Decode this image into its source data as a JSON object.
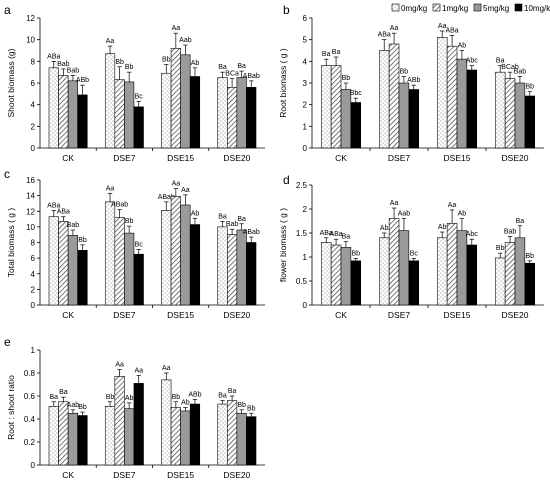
{
  "legend": {
    "entries": [
      {
        "label": "0mg/kg",
        "pattern": "dots"
      },
      {
        "label": "1mg/kg",
        "pattern": "hatch"
      },
      {
        "label": "5mg/kg",
        "pattern": "gray"
      },
      {
        "label": "10mg/kg",
        "pattern": "black"
      }
    ]
  },
  "patterns": {
    "gray_fill": "#9a9a9a",
    "black_fill": "#000000",
    "white_fill": "#ffffff"
  },
  "chart_data": [
    {
      "panel": "a",
      "type": "bar",
      "title": "",
      "xlabel": "",
      "ylabel": "Shoot biomass (g)",
      "ylim": [
        0,
        12
      ],
      "yticks": [
        0,
        2,
        4,
        6,
        8,
        10,
        12
      ],
      "categories": [
        "CK",
        "DSE7",
        "DSE15",
        "DSE20"
      ],
      "series": [
        {
          "name": "0mg/kg",
          "values": [
            7.4,
            8.7,
            6.9,
            6.5
          ],
          "errors": [
            0.6,
            0.7,
            0.8,
            0.5
          ]
        },
        {
          "name": "1mg/kg",
          "values": [
            6.7,
            6.3,
            9.2,
            5.6
          ],
          "errors": [
            0.6,
            1.2,
            1.4,
            0.8
          ]
        },
        {
          "name": "5mg/kg",
          "values": [
            6.2,
            6.1,
            8.6,
            6.5
          ],
          "errors": [
            0.5,
            0.9,
            0.9,
            0.6
          ]
        },
        {
          "name": "10mg/kg",
          "values": [
            4.9,
            3.8,
            6.6,
            5.6
          ],
          "errors": [
            0.9,
            0.5,
            0.8,
            0.6
          ]
        }
      ],
      "labels": [
        [
          "ABa",
          "Bab",
          "Bab",
          "ABb"
        ],
        [
          "Aa",
          "Bb",
          "Bb",
          "Bc"
        ],
        [
          "Bb",
          "Aa",
          "Aab",
          "Ab"
        ],
        [
          "Ba",
          "BCa",
          "Ba",
          "ABab"
        ]
      ]
    },
    {
      "panel": "b",
      "type": "bar",
      "title": "",
      "xlabel": "",
      "ylabel": "Root biomass ( g )",
      "ylim": [
        0,
        6
      ],
      "yticks": [
        0,
        1,
        2,
        3,
        4,
        5,
        6
      ],
      "categories": [
        "CK",
        "DSE7",
        "DSE15",
        "DSE20"
      ],
      "series": [
        {
          "name": "0mg/kg",
          "values": [
            3.8,
            4.5,
            5.1,
            3.5
          ],
          "errors": [
            0.3,
            0.5,
            0.3,
            0.3
          ]
        },
        {
          "name": "1mg/kg",
          "values": [
            3.8,
            4.8,
            4.7,
            3.2
          ],
          "errors": [
            0.4,
            0.5,
            0.5,
            0.3
          ]
        },
        {
          "name": "5mg/kg",
          "values": [
            2.7,
            3.0,
            4.1,
            3.0
          ],
          "errors": [
            0.3,
            0.3,
            0.4,
            0.3
          ]
        },
        {
          "name": "10mg/kg",
          "values": [
            2.1,
            2.7,
            3.6,
            2.4
          ],
          "errors": [
            0.2,
            0.2,
            0.2,
            0.2
          ]
        }
      ],
      "labels": [
        [
          "Ba",
          "Ba",
          "Bb",
          "Bbc"
        ],
        [
          "ABa",
          "Aa",
          "Bb",
          "ABb"
        ],
        [
          "Aa",
          "ABa",
          "Ab",
          "Abc"
        ],
        [
          "Ba",
          "BCab",
          "Bab",
          "Bb"
        ]
      ]
    },
    {
      "panel": "c",
      "type": "bar",
      "title": "",
      "xlabel": "",
      "ylabel": "Total biomass ( g )",
      "ylim": [
        0,
        16
      ],
      "yticks": [
        0,
        2,
        4,
        6,
        8,
        10,
        12,
        14,
        16
      ],
      "categories": [
        "CK",
        "DSE7",
        "DSE15",
        "DSE20"
      ],
      "series": [
        {
          "name": "0mg/kg",
          "values": [
            11.3,
            13.2,
            12.1,
            10.0
          ],
          "errors": [
            0.8,
            1.1,
            1.1,
            0.7
          ]
        },
        {
          "name": "1mg/kg",
          "values": [
            10.7,
            11.2,
            13.9,
            9.0
          ],
          "errors": [
            0.6,
            1.0,
            1.0,
            0.7
          ]
        },
        {
          "name": "5mg/kg",
          "values": [
            8.9,
            9.2,
            12.8,
            9.6
          ],
          "errors": [
            0.7,
            0.9,
            1.3,
            0.8
          ]
        },
        {
          "name": "10mg/kg",
          "values": [
            7.0,
            6.5,
            10.3,
            8.0
          ],
          "errors": [
            0.7,
            0.6,
            0.8,
            0.7
          ]
        }
      ],
      "labels": [
        [
          "ABa",
          "ABa",
          "Bab",
          "Bb"
        ],
        [
          "Aa",
          "ABab",
          "Bb",
          "Bc"
        ],
        [
          "ABab",
          "Aa",
          "Aa",
          "Ab"
        ],
        [
          "Ba",
          "Bab",
          "Ba",
          "ABab"
        ]
      ]
    },
    {
      "panel": "d",
      "type": "bar",
      "title": "",
      "xlabel": "",
      "ylabel": "flower biomass ( g )",
      "ylim": [
        0,
        2.5
      ],
      "yticks": [
        0,
        0.5,
        1,
        1.5,
        2,
        2.5
      ],
      "categories": [
        "CK",
        "DSE7",
        "DSE15",
        "DSE20"
      ],
      "series": [
        {
          "name": "0mg/kg",
          "values": [
            1.3,
            1.4,
            1.4,
            0.98
          ],
          "errors": [
            0.1,
            0.1,
            0.12,
            0.1
          ]
        },
        {
          "name": "1mg/kg",
          "values": [
            1.25,
            1.8,
            1.7,
            1.3
          ],
          "errors": [
            0.12,
            0.22,
            0.28,
            0.13
          ]
        },
        {
          "name": "5mg/kg",
          "values": [
            1.2,
            1.55,
            1.55,
            1.4
          ],
          "errors": [
            0.12,
            0.25,
            0.25,
            0.25
          ]
        },
        {
          "name": "10mg/kg",
          "values": [
            0.92,
            0.92,
            1.25,
            0.87
          ],
          "errors": [
            0.05,
            0.05,
            0.12,
            0.05
          ]
        }
      ],
      "labels": [
        [
          "ABa",
          "ABa",
          "Ba",
          "Bb"
        ],
        [
          "Ab",
          "Aa",
          "Aab",
          "Bc"
        ],
        [
          "Ab",
          "Aa",
          "Ab",
          "Abc"
        ],
        [
          "Bb",
          "Bab",
          "Ba",
          "Bb"
        ]
      ]
    },
    {
      "panel": "e",
      "type": "bar",
      "title": "",
      "xlabel": "",
      "ylabel": "Root : shoot ratio",
      "ylim": [
        0,
        1
      ],
      "yticks": [
        0,
        0.2,
        0.4,
        0.6,
        0.8,
        1
      ],
      "categories": [
        "CK",
        "DSE7",
        "DSE15",
        "DSE20"
      ],
      "series": [
        {
          "name": "0mg/kg",
          "values": [
            0.51,
            0.51,
            0.74,
            0.53
          ],
          "errors": [
            0.04,
            0.04,
            0.06,
            0.03
          ]
        },
        {
          "name": "1mg/kg",
          "values": [
            0.55,
            0.77,
            0.5,
            0.56
          ],
          "errors": [
            0.04,
            0.06,
            0.05,
            0.04
          ]
        },
        {
          "name": "5mg/kg",
          "values": [
            0.45,
            0.49,
            0.47,
            0.45
          ],
          "errors": [
            0.03,
            0.05,
            0.03,
            0.03
          ]
        },
        {
          "name": "10mg/kg",
          "values": [
            0.43,
            0.71,
            0.53,
            0.42
          ],
          "errors": [
            0.03,
            0.07,
            0.04,
            0.03
          ]
        }
      ],
      "labels": [
        [
          "Ba",
          "Ba",
          "Aab",
          "Bb"
        ],
        [
          "Bb",
          "Aa",
          "Ab",
          "Aa"
        ],
        [
          "Aa",
          "Bb",
          "Ab",
          "ABb"
        ],
        [
          "Ba",
          "Ba",
          "Bb",
          "Bb"
        ]
      ]
    }
  ]
}
